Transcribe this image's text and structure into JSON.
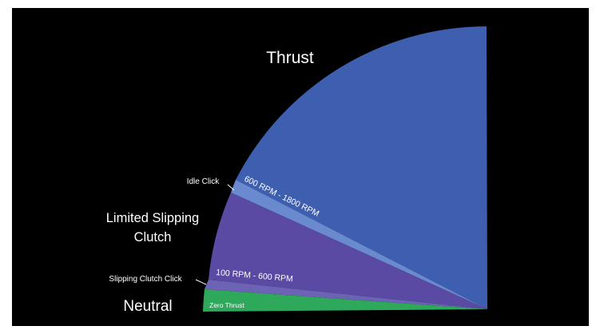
{
  "colors": {
    "background": "#000000",
    "frame": "#ffffff",
    "thrust": "#3e5eb0",
    "idle_band": "#6a8ad0",
    "limited_slipping": "#5a4aa4",
    "slipping_click_band": "#6c63b4",
    "neutral": "#2ea85a",
    "label_text": "#ffffff"
  },
  "zones": {
    "thrust": {
      "label": "Thrust",
      "rpm_label": "600 RPM - 1800 RPM"
    },
    "idle_click": {
      "label": "Idle Click"
    },
    "limited_slipping_clutch": {
      "label_line1": "Limited Slipping",
      "label_line2": "Clutch",
      "rpm_label": "100 RPM - 600 RPM"
    },
    "slipping_clutch_click": {
      "label": "Slipping Clutch Click"
    },
    "neutral": {
      "label": "Neutral",
      "inner_label": "Zero Thrust"
    }
  }
}
